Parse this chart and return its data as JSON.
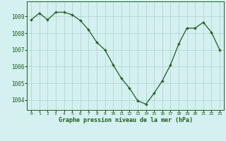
{
  "x": [
    0,
    1,
    2,
    3,
    4,
    5,
    6,
    7,
    8,
    9,
    10,
    11,
    12,
    13,
    14,
    15,
    16,
    17,
    18,
    19,
    20,
    21,
    22,
    23
  ],
  "y": [
    1008.8,
    1009.2,
    1008.8,
    1009.25,
    1009.25,
    1009.1,
    1008.75,
    1008.2,
    1007.45,
    1007.0,
    1006.1,
    1005.3,
    1004.7,
    1003.95,
    1003.75,
    1004.4,
    1005.15,
    1006.1,
    1007.35,
    1008.3,
    1008.3,
    1008.65,
    1008.05,
    1007.0
  ],
  "ylim": [
    1003.4,
    1009.9
  ],
  "yticks": [
    1004,
    1005,
    1006,
    1007,
    1008,
    1009
  ],
  "xticks": [
    0,
    1,
    2,
    3,
    4,
    5,
    6,
    7,
    8,
    9,
    10,
    11,
    12,
    13,
    14,
    15,
    16,
    17,
    18,
    19,
    20,
    21,
    22,
    23
  ],
  "line_color": "#1e5c1e",
  "marker_color": "#1e5c1e",
  "bg_color": "#d4f0f0",
  "grid_color": "#b0d0cc",
  "xlabel": "Graphe pression niveau de la mer (hPa)",
  "xlabel_color": "#1e5c1e",
  "tick_color": "#1e5c1e",
  "spine_color": "#1e5c1e"
}
